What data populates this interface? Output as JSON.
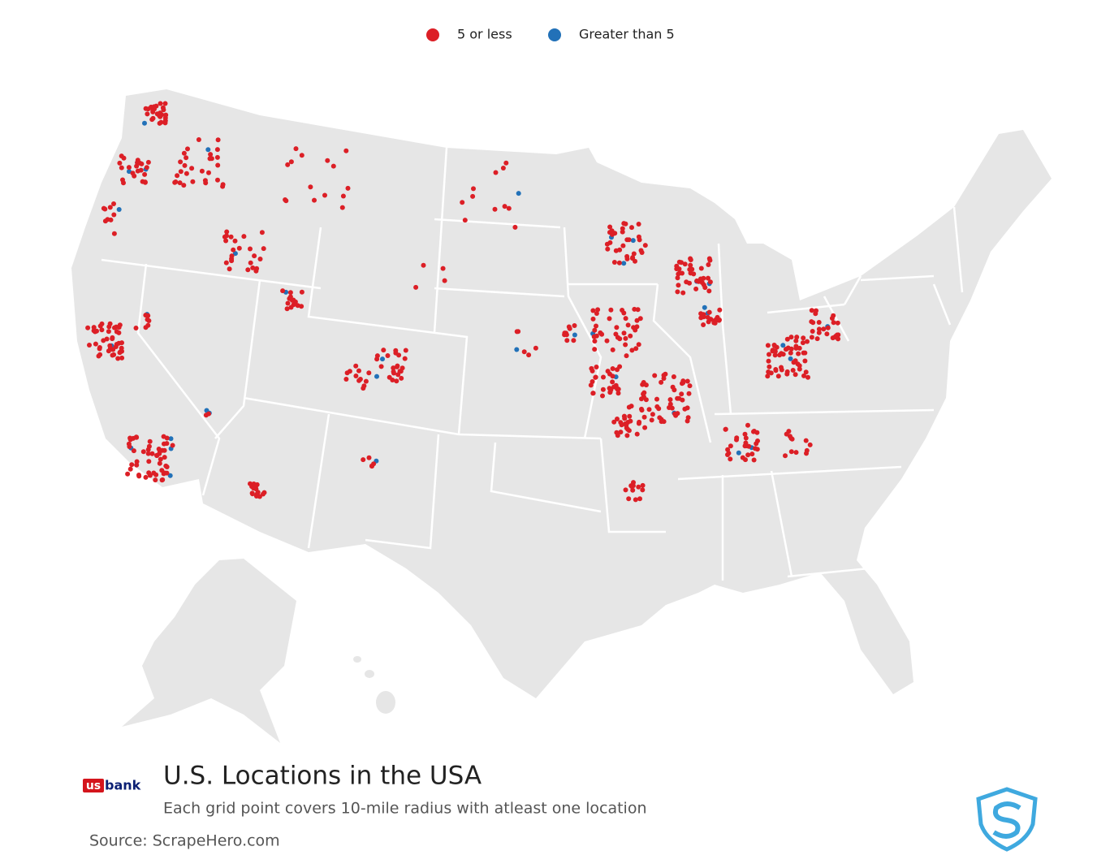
{
  "legend": {
    "items": [
      {
        "label": "5 or less",
        "color": "#dc1f26"
      },
      {
        "label": "Greater than 5",
        "color": "#2271b8"
      }
    ]
  },
  "logo": {
    "us": "us",
    "bank": "bank"
  },
  "title": "U.S. Locations in the USA",
  "subtitle": "Each grid point covers 10-mile radius with atleast one location",
  "source": "Source: ScrapeHero.com"
}
